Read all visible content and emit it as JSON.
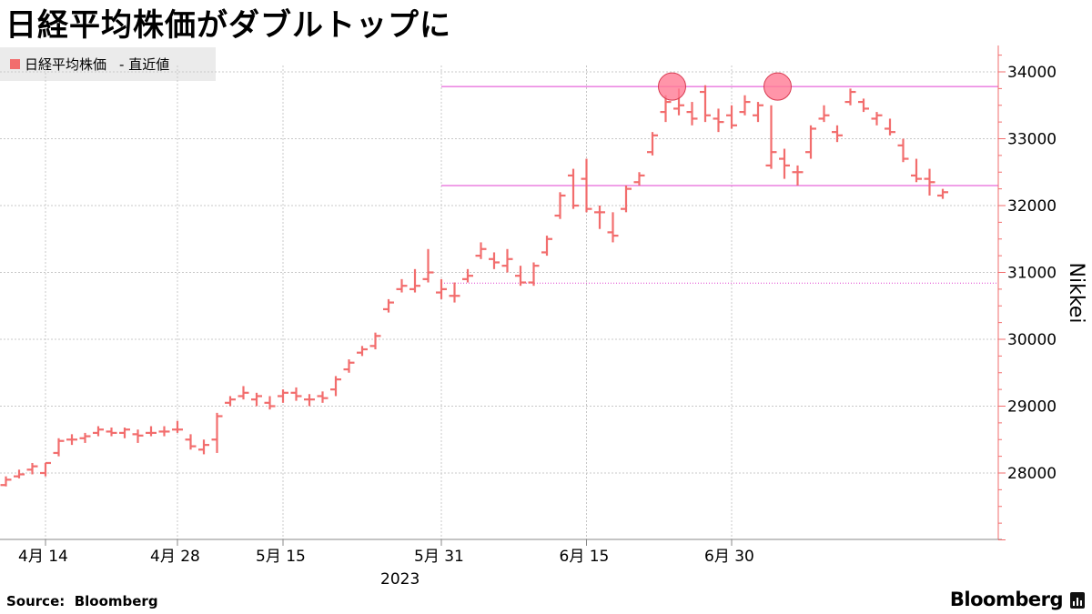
{
  "title": "日経平均株価がダブルトップに",
  "legend": {
    "label": "日経平均株価",
    "value_label": "- 直近値",
    "color": "#f26d6d"
  },
  "footer": {
    "source": "Source:  Bloomberg",
    "brand": "Bloomberg"
  },
  "chart_data": {
    "type": "ohlc",
    "year_label": "2023",
    "ylabel": "Nikkei",
    "ylim": [
      26950,
      34500
    ],
    "yticks": [
      28000,
      29000,
      30000,
      31000,
      32000,
      33000,
      34000
    ],
    "grid": true,
    "xticks": [
      {
        "label": "4月  14",
        "index": 4
      },
      {
        "label": "4月  28",
        "index": 14
      },
      {
        "label": "5月  15",
        "index": 22
      },
      {
        "label": "5月  31",
        "index": 34
      },
      {
        "label": "6月  15",
        "index": 45
      },
      {
        "label": "6月  30",
        "index": 56
      }
    ],
    "series": [
      {
        "color": "#f26d6d",
        "bars": [
          {
            "date": "4月6日",
            "open": 27650,
            "high": 27700,
            "low": 27550,
            "close": 27620
          },
          {
            "date": "4月7日",
            "open": 27820,
            "high": 27950,
            "low": 27800,
            "close": 27900
          },
          {
            "date": "4月10日",
            "open": 27950,
            "high": 28050,
            "low": 27920,
            "close": 27980
          },
          {
            "date": "4月11日",
            "open": 28050,
            "high": 28150,
            "low": 27980,
            "close": 28100
          },
          {
            "date": "4月12日",
            "open": 28000,
            "high": 28150,
            "low": 27950,
            "close": 28150
          },
          {
            "date": "4月13日",
            "open": 28300,
            "high": 28520,
            "low": 28250,
            "close": 28480
          },
          {
            "date": "4月14日",
            "open": 28500,
            "high": 28580,
            "low": 28420,
            "close": 28500
          },
          {
            "date": "4月17日",
            "open": 28520,
            "high": 28600,
            "low": 28450,
            "close": 28550
          },
          {
            "date": "4月18日",
            "open": 28600,
            "high": 28700,
            "low": 28550,
            "close": 28650
          },
          {
            "date": "4月19日",
            "open": 28620,
            "high": 28680,
            "low": 28550,
            "close": 28600
          },
          {
            "date": "4月20日",
            "open": 28600,
            "high": 28680,
            "low": 28520,
            "close": 28650
          },
          {
            "date": "4月21日",
            "open": 28580,
            "high": 28650,
            "low": 28450,
            "close": 28560
          },
          {
            "date": "4月24日",
            "open": 28600,
            "high": 28700,
            "low": 28550,
            "close": 28600
          },
          {
            "date": "4月25日",
            "open": 28620,
            "high": 28700,
            "low": 28550,
            "close": 28620
          },
          {
            "date": "4月26日",
            "open": 28650,
            "high": 28780,
            "low": 28600,
            "close": 28650
          },
          {
            "date": "4月27日",
            "open": 28500,
            "high": 28580,
            "low": 28350,
            "close": 28400
          },
          {
            "date": "4月28日",
            "open": 28350,
            "high": 28500,
            "low": 28280,
            "close": 28420
          },
          {
            "date": "5月1日",
            "open": 28500,
            "high": 28900,
            "low": 28300,
            "close": 28850
          },
          {
            "date": "5月2日",
            "open": 29050,
            "high": 29150,
            "low": 29000,
            "close": 29100
          },
          {
            "date": "5月8日",
            "open": 29150,
            "high": 29300,
            "low": 29100,
            "close": 29200
          },
          {
            "date": "5月9日",
            "open": 29100,
            "high": 29200,
            "low": 29000,
            "close": 29150
          },
          {
            "date": "5月10日",
            "open": 29050,
            "high": 29150,
            "low": 28950,
            "close": 29000
          },
          {
            "date": "5月11日",
            "open": 29150,
            "high": 29250,
            "low": 29050,
            "close": 29200
          },
          {
            "date": "5月12日",
            "open": 29200,
            "high": 29280,
            "low": 29080,
            "close": 29150
          },
          {
            "date": "5月15日",
            "open": 29100,
            "high": 29180,
            "low": 29000,
            "close": 29100
          },
          {
            "date": "5月16日",
            "open": 29150,
            "high": 29220,
            "low": 29050,
            "close": 29120
          },
          {
            "date": "5月17日",
            "open": 29250,
            "high": 29450,
            "low": 29150,
            "close": 29400
          },
          {
            "date": "5月18日",
            "open": 29550,
            "high": 29700,
            "low": 29500,
            "close": 29650
          },
          {
            "date": "5月19日",
            "open": 29800,
            "high": 29900,
            "low": 29750,
            "close": 29850
          },
          {
            "date": "5月22日",
            "open": 29900,
            "high": 30100,
            "low": 29850,
            "close": 30050
          },
          {
            "date": "5月23日",
            "open": 30450,
            "high": 30600,
            "low": 30400,
            "close": 30550
          },
          {
            "date": "5月24日",
            "open": 30750,
            "high": 30900,
            "low": 30700,
            "close": 30800
          },
          {
            "date": "5月25日",
            "open": 30750,
            "high": 31050,
            "low": 30700,
            "close": 30800
          },
          {
            "date": "5月26日",
            "open": 30900,
            "high": 31350,
            "low": 30850,
            "close": 31000
          },
          {
            "date": "5月29日",
            "open": 30700,
            "high": 30900,
            "low": 30600,
            "close": 30750
          },
          {
            "date": "5月30日",
            "open": 30650,
            "high": 30850,
            "low": 30550,
            "close": 30650
          },
          {
            "date": "5月31日",
            "open": 30900,
            "high": 31050,
            "low": 30850,
            "close": 30950
          },
          {
            "date": "6月1日",
            "open": 31250,
            "high": 31450,
            "low": 31200,
            "close": 31350
          },
          {
            "date": "6月2日",
            "open": 31200,
            "high": 31300,
            "low": 31050,
            "close": 31150
          },
          {
            "date": "6月5日",
            "open": 31100,
            "high": 31350,
            "low": 31000,
            "close": 31200
          },
          {
            "date": "6月6日",
            "open": 30950,
            "high": 31100,
            "low": 30800,
            "close": 30850
          },
          {
            "date": "6月7日",
            "open": 30850,
            "high": 31150,
            "low": 30800,
            "close": 31100
          },
          {
            "date": "6月8日",
            "open": 31300,
            "high": 31550,
            "low": 31250,
            "close": 31500
          },
          {
            "date": "6月9日",
            "open": 31850,
            "high": 32200,
            "low": 31800,
            "close": 32150
          },
          {
            "date": "6月12日",
            "open": 32450,
            "high": 32550,
            "low": 31950,
            "close": 32000
          },
          {
            "date": "6月13日",
            "open": 32400,
            "high": 32700,
            "low": 31900,
            "close": 31950
          },
          {
            "date": "6月14日",
            "open": 31900,
            "high": 32000,
            "low": 31650,
            "close": 31900
          },
          {
            "date": "6月15日",
            "open": 31600,
            "high": 31900,
            "low": 31450,
            "close": 31550
          },
          {
            "date": "6月16日",
            "open": 31950,
            "high": 32300,
            "low": 31900,
            "close": 32250
          },
          {
            "date": "6月19日",
            "open": 32350,
            "high": 32500,
            "low": 32300,
            "close": 32450
          },
          {
            "date": "6月20日",
            "open": 32800,
            "high": 33100,
            "low": 32750,
            "close": 33050
          },
          {
            "date": "6月21日",
            "open": 33400,
            "high": 33650,
            "low": 33250,
            "close": 33550
          },
          {
            "date": "6月22日",
            "open": 33450,
            "high": 33750,
            "low": 33350,
            "close": 33500
          },
          {
            "date": "6月23日",
            "open": 33400,
            "high": 33550,
            "low": 33200,
            "close": 33300
          },
          {
            "date": "6月26日",
            "open": 33700,
            "high": 33800,
            "low": 33250,
            "close": 33350
          },
          {
            "date": "6月27日",
            "open": 33300,
            "high": 33450,
            "low": 33100,
            "close": 33250
          },
          {
            "date": "6月28日",
            "open": 33350,
            "high": 33500,
            "low": 33150,
            "close": 33200
          },
          {
            "date": "6月29日",
            "open": 33400,
            "high": 33650,
            "low": 33350,
            "close": 33550
          },
          {
            "date": "6月30日",
            "open": 33350,
            "high": 33550,
            "low": 33250,
            "close": 33500
          },
          {
            "date": "7月3日",
            "open": 32600,
            "high": 33500,
            "low": 32550,
            "close": 32800
          },
          {
            "date": "7月4日",
            "open": 32700,
            "high": 32850,
            "low": 32400,
            "close": 32600
          },
          {
            "date": "7月5日",
            "open": 32500,
            "high": 32600,
            "low": 32300,
            "close": 32500
          },
          {
            "date": "7月6日",
            "open": 32800,
            "high": 33200,
            "low": 32700,
            "close": 33150
          },
          {
            "date": "7月7日",
            "open": 33300,
            "high": 33500,
            "low": 33250,
            "close": 33350
          },
          {
            "date": "7月10日",
            "open": 33100,
            "high": 33200,
            "low": 32950,
            "close": 33050
          },
          {
            "date": "7月11日",
            "open": 33550,
            "high": 33750,
            "low": 33500,
            "close": 33700
          },
          {
            "date": "7月12日",
            "open": 33550,
            "high": 33600,
            "low": 33400,
            "close": 33450
          },
          {
            "date": "7月13日",
            "open": 33300,
            "high": 33400,
            "low": 33200,
            "close": 33350
          },
          {
            "date": "7月14日",
            "open": 33150,
            "high": 33300,
            "low": 33050,
            "close": 33100
          },
          {
            "date": "7月18日",
            "open": 32900,
            "high": 33000,
            "low": 32650,
            "close": 32700
          },
          {
            "date": "7月19日",
            "open": 32450,
            "high": 32700,
            "low": 32350,
            "close": 32400
          },
          {
            "date": "7月20日",
            "open": 32400,
            "high": 32550,
            "low": 32150,
            "close": 32350
          },
          {
            "date": "7月21日",
            "open": 32150,
            "high": 32250,
            "low": 32100,
            "close": 32200
          }
        ]
      }
    ],
    "annotations": {
      "resistance_level": 33780,
      "support_level": 32300,
      "reference_level": 30840,
      "line_color": "#e040d0",
      "circle_color": "#ff7a94",
      "peak_markers": [
        {
          "date": "6月21日",
          "value": 33780
        },
        {
          "date": "7月3日",
          "value": 33780
        }
      ]
    }
  }
}
